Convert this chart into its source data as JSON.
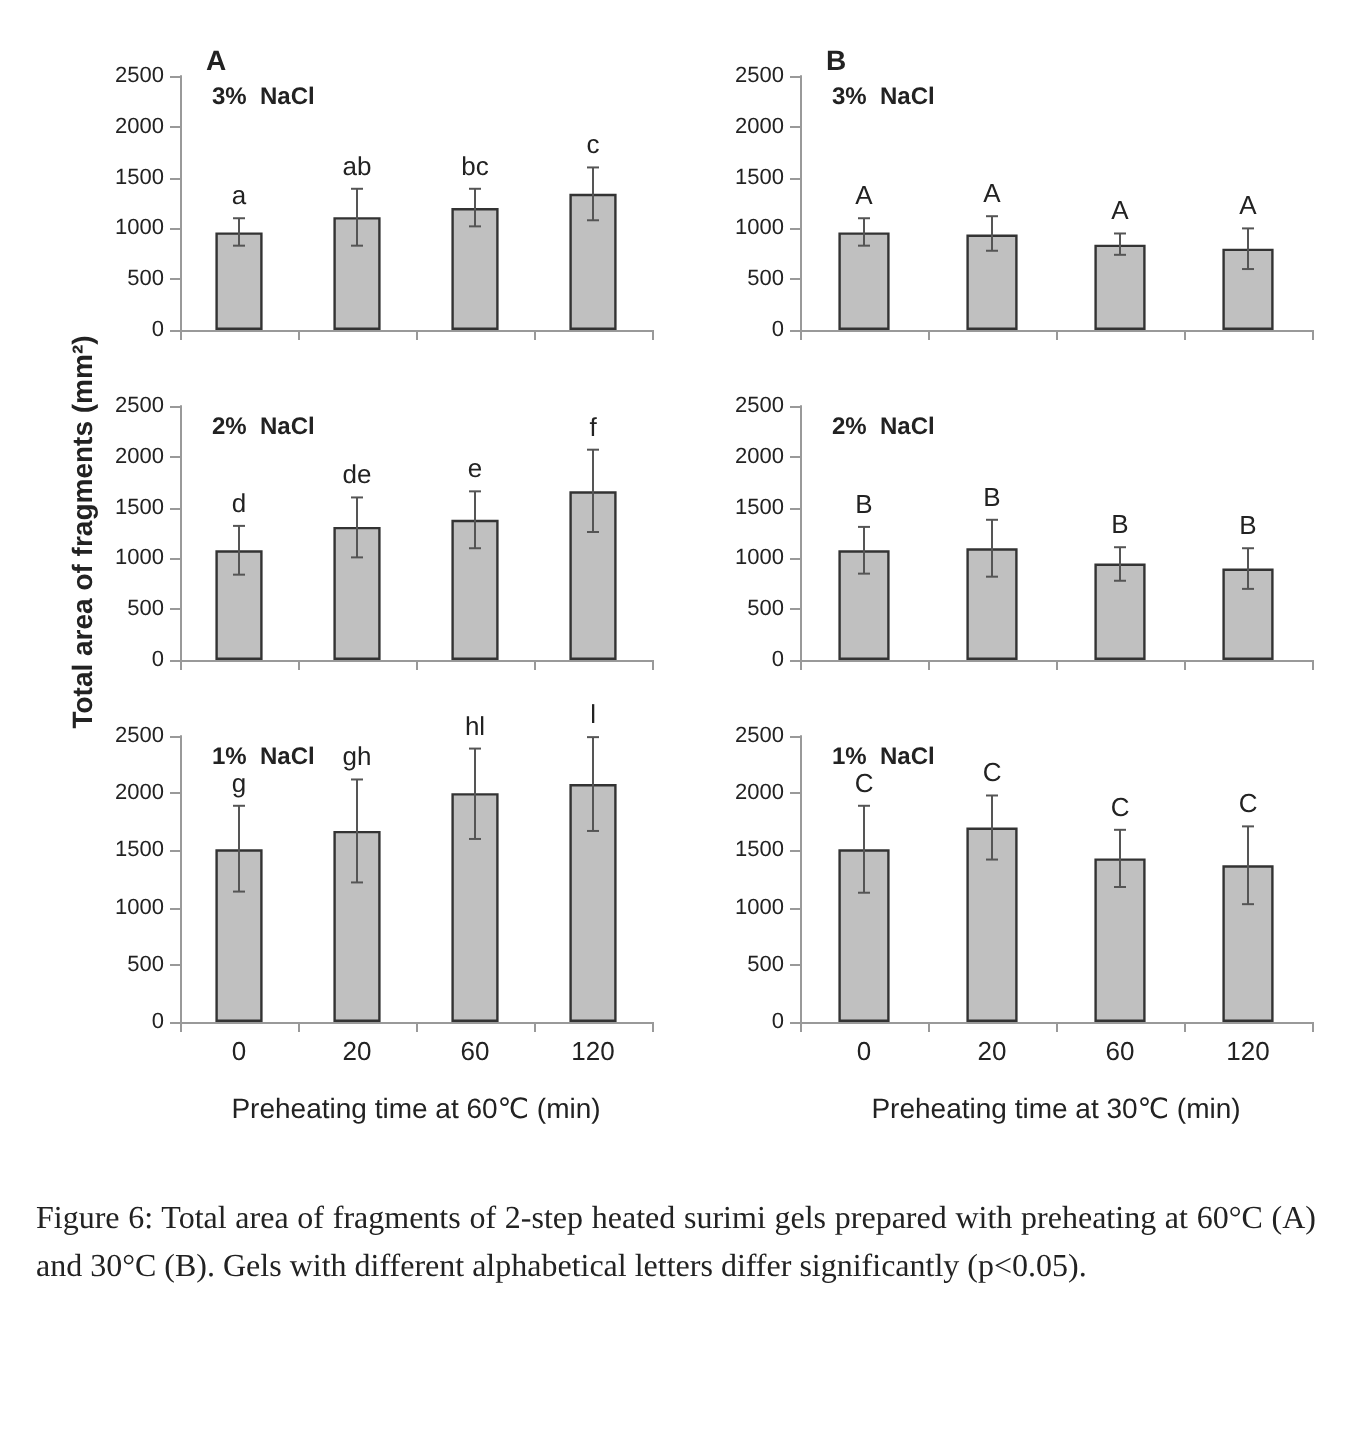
{
  "chart_data": [
    {
      "type": "bar",
      "title": "A",
      "subtitle": "3%  NaCl",
      "categories": [
        "0",
        "20",
        "60",
        "120"
      ],
      "values": [
        960,
        1110,
        1200,
        1340
      ],
      "color": "#c0c0c0",
      "errors": [
        [
          830,
          1100
        ],
        [
          830,
          1390
        ],
        [
          1020,
          1390
        ],
        [
          1080,
          1600
        ]
      ],
      "ylim": [
        0,
        2500
      ],
      "yticks": [
        0,
        500,
        1000,
        1500,
        2000,
        2500
      ],
      "tick_labels": "y",
      "annotations": [
        {
          "text": "a",
          "x": "0",
          "y": 1100
        },
        {
          "text": "ab",
          "x": "20",
          "y": 1390
        },
        {
          "text": "bc",
          "x": "60",
          "y": 1390
        },
        {
          "text": "c",
          "x": "120",
          "y": 1600
        }
      ]
    },
    {
      "type": "bar",
      "subtitle": "2%  NaCl",
      "ylabel": "Total area of fragments (mm²)",
      "categories": [
        "0",
        "20",
        "60",
        "120"
      ],
      "values": [
        1080,
        1310,
        1380,
        1660
      ],
      "color": "#c0c0c0",
      "errors": [
        [
          840,
          1320
        ],
        [
          1010,
          1600
        ],
        [
          1100,
          1660
        ],
        [
          1260,
          2070
        ]
      ],
      "ylim": [
        0,
        2500
      ],
      "yticks": [
        0,
        500,
        1000,
        1500,
        2000,
        2500
      ],
      "tick_labels": "y",
      "annotations": [
        {
          "text": "d",
          "x": "0",
          "y": 1320
        },
        {
          "text": "de",
          "x": "20",
          "y": 1600
        },
        {
          "text": "e",
          "x": "60",
          "y": 1660
        },
        {
          "text": "f",
          "x": "120",
          "y": 2070
        }
      ]
    },
    {
      "type": "bar",
      "subtitle": "1%  NaCl",
      "xlabel": "Preheating time at 60℃ (min)",
      "categories": [
        "0",
        "20",
        "60",
        "120"
      ],
      "values": [
        1510,
        1670,
        2000,
        2080
      ],
      "color": "#c0c0c0",
      "errors": [
        [
          1140,
          1890
        ],
        [
          1220,
          2120
        ],
        [
          1600,
          2390
        ],
        [
          1670,
          2490
        ]
      ],
      "ylim": [
        0,
        2500
      ],
      "yticks": [
        0,
        500,
        1000,
        1500,
        2000,
        2500
      ],
      "annotations": [
        {
          "text": "g",
          "x": "0",
          "y": 1890
        },
        {
          "text": "gh",
          "x": "20",
          "y": 2120
        },
        {
          "text": "hl",
          "x": "60",
          "y": 2390
        },
        {
          "text": "l",
          "x": "120",
          "y": 2490
        }
      ]
    },
    {
      "type": "bar",
      "title": "B",
      "subtitle": "3%  NaCl",
      "categories": [
        "0",
        "20",
        "60",
        "120"
      ],
      "values": [
        960,
        940,
        840,
        800
      ],
      "color": "#c0c0c0",
      "errors": [
        [
          830,
          1100
        ],
        [
          780,
          1120
        ],
        [
          740,
          950
        ],
        [
          600,
          1000
        ]
      ],
      "ylim": [
        0,
        2500
      ],
      "yticks": [
        0,
        500,
        1000,
        1500,
        2000,
        2500
      ],
      "tick_labels": "y",
      "annotations": [
        {
          "text": "A",
          "x": "0",
          "y": 1100
        },
        {
          "text": "A",
          "x": "20",
          "y": 1120
        },
        {
          "text": "A",
          "x": "60",
          "y": 950
        },
        {
          "text": "A",
          "x": "120",
          "y": 1000
        }
      ]
    },
    {
      "type": "bar",
      "subtitle": "2%  NaCl",
      "categories": [
        "0",
        "20",
        "60",
        "120"
      ],
      "values": [
        1080,
        1100,
        950,
        900
      ],
      "color": "#c0c0c0",
      "errors": [
        [
          850,
          1310
        ],
        [
          820,
          1380
        ],
        [
          780,
          1110
        ],
        [
          700,
          1100
        ]
      ],
      "ylim": [
        0,
        2500
      ],
      "yticks": [
        0,
        500,
        1000,
        1500,
        2000,
        2500
      ],
      "tick_labels": "y",
      "annotations": [
        {
          "text": "B",
          "x": "0",
          "y": 1310
        },
        {
          "text": "B",
          "x": "20",
          "y": 1380
        },
        {
          "text": "B",
          "x": "60",
          "y": 1110
        },
        {
          "text": "B",
          "x": "120",
          "y": 1100
        }
      ]
    },
    {
      "type": "bar",
      "subtitle": "1%  NaCl",
      "xlabel": "Preheating time at 30℃ (min)",
      "categories": [
        "0",
        "20",
        "60",
        "120"
      ],
      "values": [
        1510,
        1700,
        1430,
        1370
      ],
      "color": "#c0c0c0",
      "errors": [
        [
          1130,
          1890
        ],
        [
          1420,
          1980
        ],
        [
          1180,
          1680
        ],
        [
          1030,
          1710
        ]
      ],
      "ylim": [
        0,
        2500
      ],
      "yticks": [
        0,
        500,
        1000,
        1500,
        2000,
        2500
      ],
      "annotations": [
        {
          "text": "C",
          "x": "0",
          "y": 1890
        },
        {
          "text": "C",
          "x": "20",
          "y": 1980
        },
        {
          "text": "C",
          "x": "60",
          "y": 1680
        },
        {
          "text": "C",
          "x": "120",
          "y": 1710
        },
        "Figure 6: Total area of fragments of 2-step heated surimi gels prepared with preheating at 60°C (A) and 30°C (B). Gels with different alphabetical letters differ significantly (p<0.05)."
      ]
    }
  ]
}
